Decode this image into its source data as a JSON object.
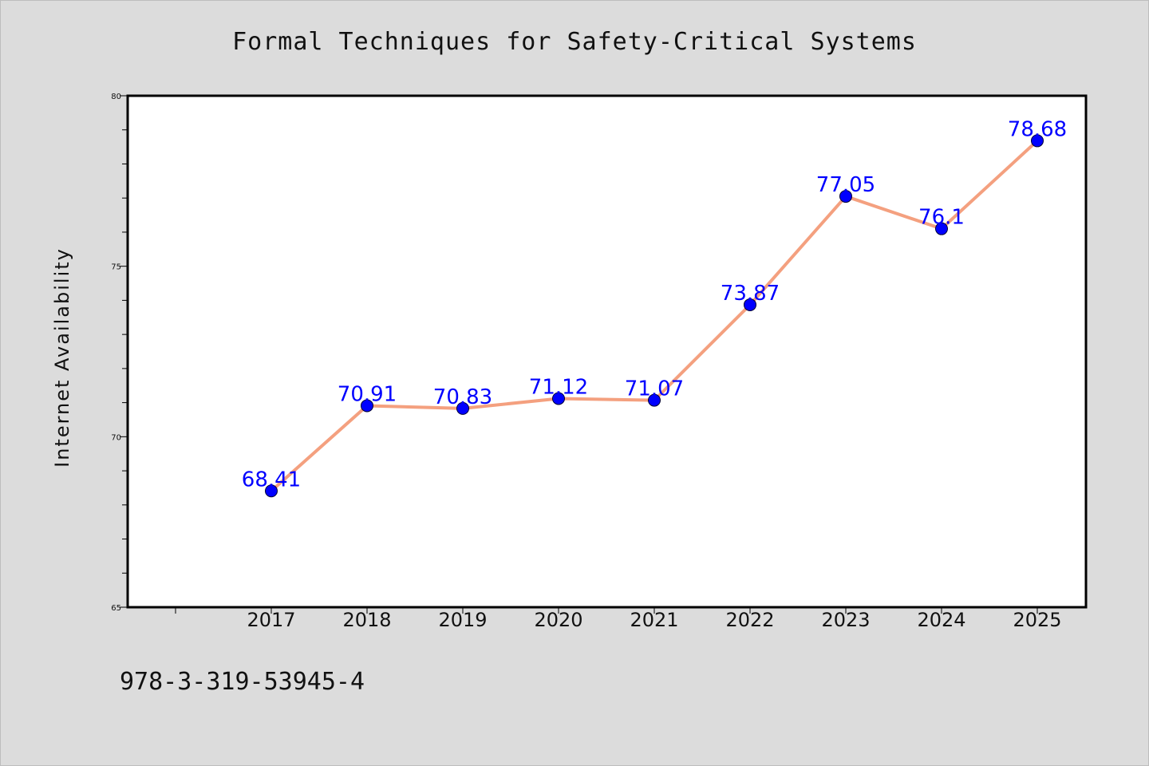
{
  "chart_data": {
    "type": "line",
    "title": "Formal Techniques for Safety-Critical Systems",
    "xlabel": "",
    "ylabel": "Internet Availability",
    "categories": [
      "2017",
      "2018",
      "2019",
      "2020",
      "2021",
      "2022",
      "2023",
      "2024",
      "2025"
    ],
    "series": [
      {
        "values": [
          68.41,
          70.91,
          70.83,
          71.12,
          71.07,
          73.87,
          77.05,
          76.1,
          78.68
        ],
        "labels": [
          "68.41",
          "70.91",
          "70.83",
          "71.12",
          "71.07",
          "73.87",
          "77.05",
          "76.1",
          "78.68"
        ]
      }
    ],
    "ylim": [
      65,
      80
    ],
    "yticks": [
      "65",
      "70",
      "75",
      "80"
    ],
    "grid": false,
    "legend": "none",
    "colors": {
      "line": "#f4a07f",
      "marker": "#0000ff",
      "data_label": "#0000ff",
      "plot_background": "#ffffff",
      "page_background": "#dcdcdc"
    }
  },
  "footer": {
    "isbn": "978-3-319-53945-4"
  }
}
